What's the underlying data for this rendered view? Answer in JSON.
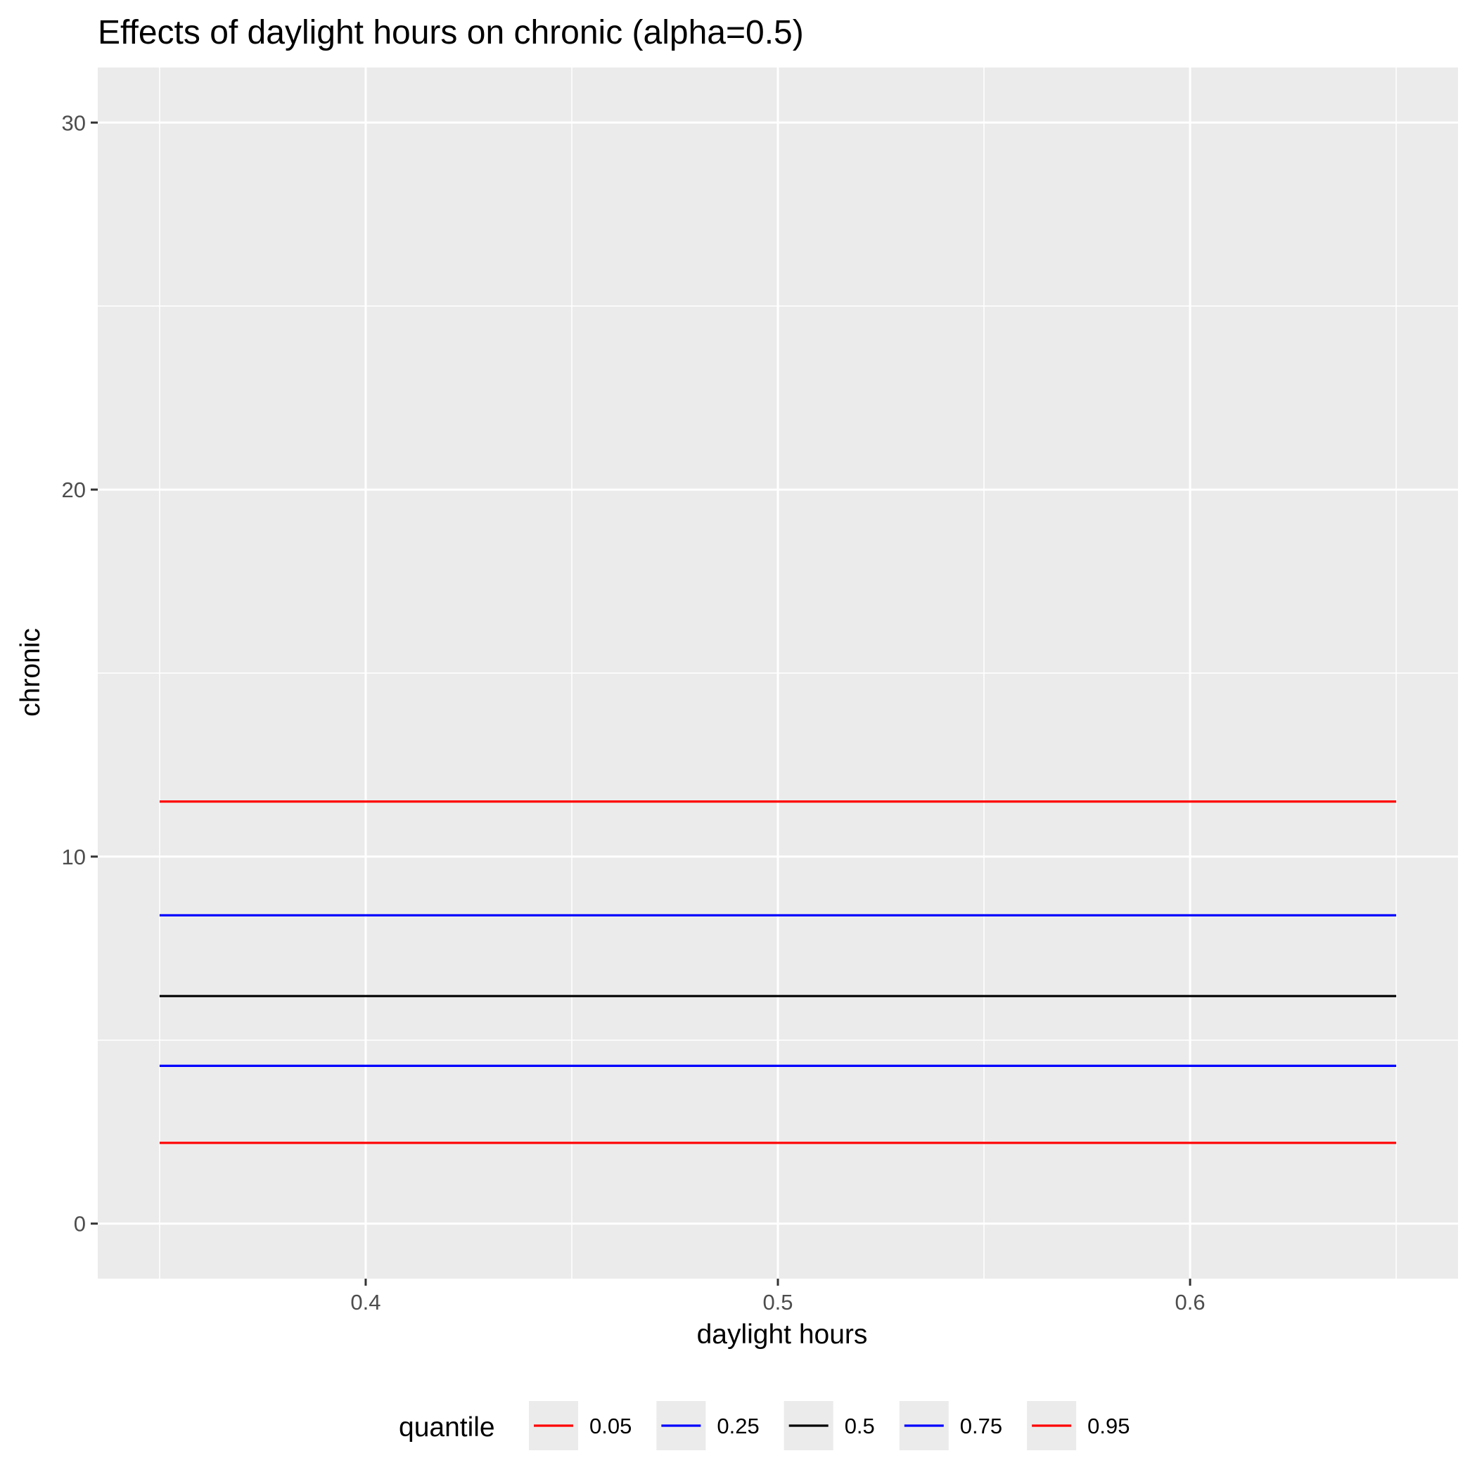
{
  "chart_data": {
    "type": "line",
    "title": "Effects of daylight hours on chronic (alpha=0.5)",
    "xlabel": "daylight hours",
    "ylabel": "chronic",
    "xlim": [
      0.335,
      0.665
    ],
    "ylim": [
      -1.5,
      31.5
    ],
    "x_ticks": [
      0.4,
      0.5,
      0.6
    ],
    "x_tick_labels": [
      "0.4",
      "0.5",
      "0.6"
    ],
    "x_minor_ticks": [
      0.35,
      0.45,
      0.55,
      0.65
    ],
    "y_ticks": [
      0,
      10,
      20,
      30
    ],
    "y_tick_labels": [
      "0",
      "10",
      "20",
      "30"
    ],
    "y_minor_ticks": [
      5,
      15,
      25
    ],
    "grid": true,
    "legend": {
      "title": "quantile",
      "position": "bottom"
    },
    "x": [
      0.35,
      0.65
    ],
    "series": [
      {
        "name": "0.05",
        "color": "#ff0000",
        "values": [
          2.2,
          2.2
        ]
      },
      {
        "name": "0.25",
        "color": "#0000ff",
        "values": [
          4.3,
          4.3
        ]
      },
      {
        "name": "0.5",
        "color": "#000000",
        "values": [
          6.2,
          6.2
        ]
      },
      {
        "name": "0.75",
        "color": "#0000ff",
        "values": [
          8.4,
          8.4
        ]
      },
      {
        "name": "0.95",
        "color": "#ff0000",
        "values": [
          11.5,
          11.5
        ]
      }
    ]
  }
}
